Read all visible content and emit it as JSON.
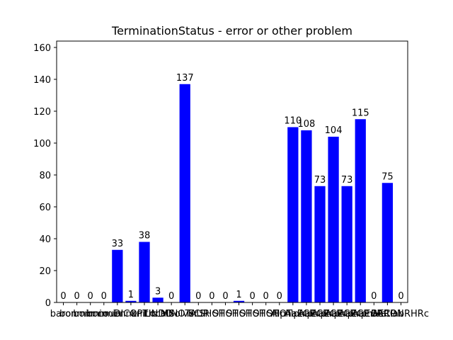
{
  "chart_data": {
    "type": "bar",
    "title": "TerminationStatus - error or other problem",
    "xlabel": "",
    "ylabel": "",
    "ylim": [
      0,
      164
    ],
    "yticks": [
      0,
      20,
      40,
      60,
      80,
      100,
      120,
      140,
      160
    ],
    "grid": false,
    "legend": "none",
    "bar_color": "#0000ff",
    "categories": [
      "baron",
      "bonmin",
      "bonmin",
      "bonmin",
      "couenne",
      "DICOPT",
      "knitro",
      "LINDO",
      "LocalSolver",
      "MINOTAUR",
      "SCIP",
      "SHOT",
      "SHOT",
      "SHOT",
      "SHOT",
      "SHOT",
      "SHOT",
      "AlphaECP",
      "AlphaECP",
      "AlphaECP",
      "AlphaECP",
      "AlphaECP",
      "AlphaECP",
      "AlphaECP",
      "BARON",
      "MatlabRHRc"
    ],
    "values": [
      0,
      0,
      0,
      0,
      33,
      1,
      38,
      3,
      0,
      137,
      0,
      0,
      0,
      1,
      0,
      0,
      0,
      110,
      108,
      73,
      104,
      73,
      115,
      0,
      75,
      0
    ],
    "data_labels": [
      "0",
      "0",
      "0",
      "0",
      "33",
      "1",
      "38",
      "3",
      "0",
      "137",
      "0",
      "0",
      "0",
      "1",
      "0",
      "0",
      "0",
      "110",
      "108",
      "73",
      "104",
      "73",
      "115",
      "0",
      "75",
      "0"
    ]
  }
}
